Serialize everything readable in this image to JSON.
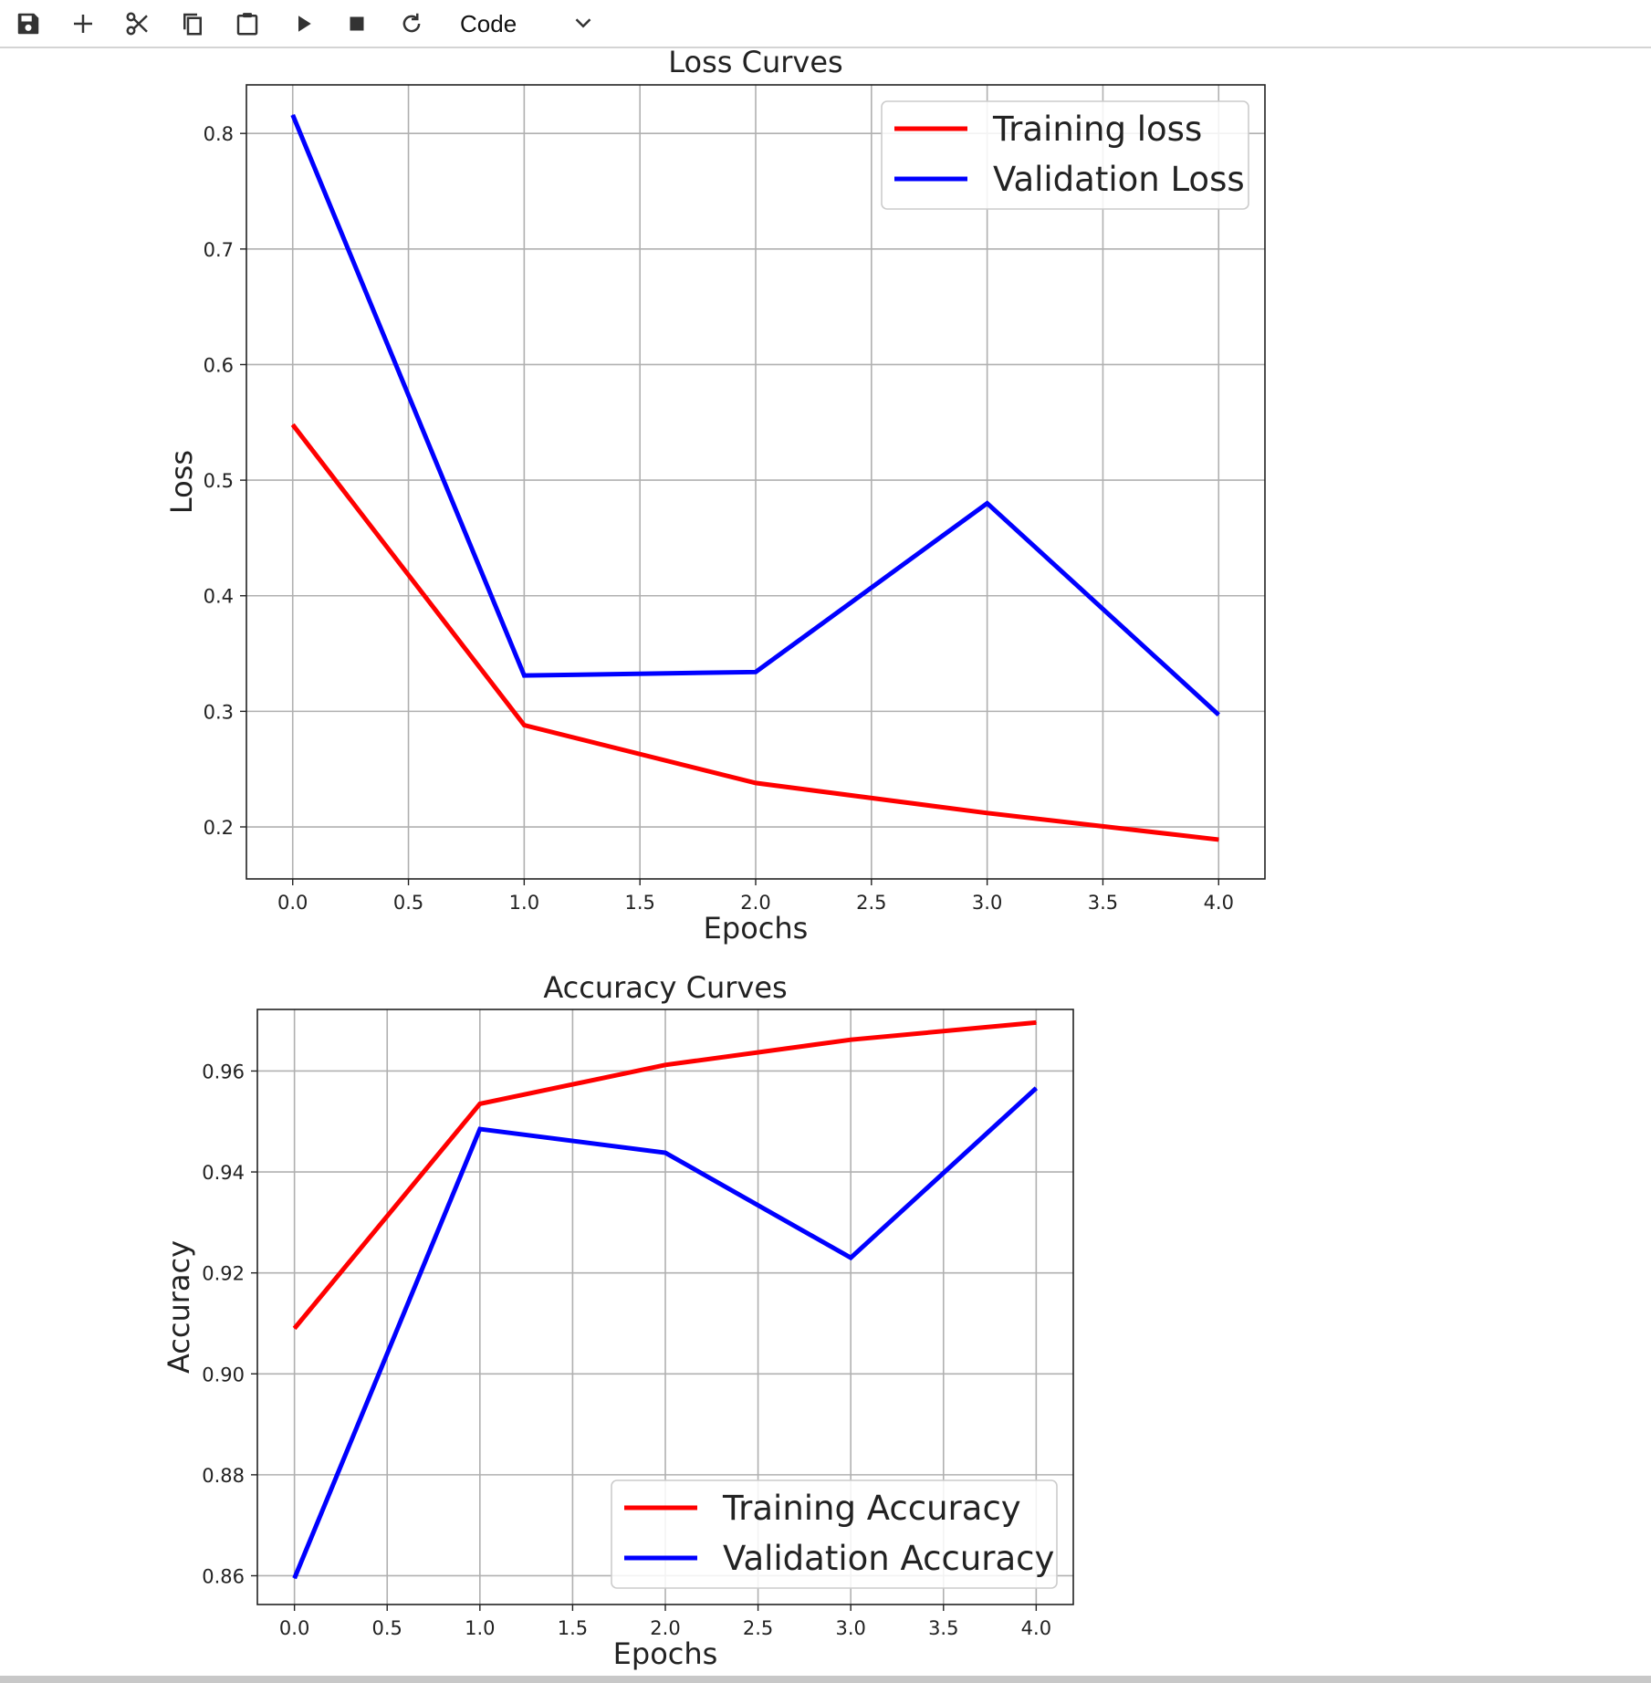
{
  "toolbar": {
    "buttons": [
      {
        "icon": "save-icon"
      },
      {
        "icon": "plus-icon"
      },
      {
        "icon": "cut-icon"
      },
      {
        "icon": "copy-icon"
      },
      {
        "icon": "paste-icon"
      },
      {
        "icon": "run-icon"
      },
      {
        "icon": "stop-icon"
      },
      {
        "icon": "restart-icon"
      }
    ],
    "cell_type": "Code"
  },
  "chart_data": [
    {
      "type": "line",
      "title": "Loss Curves",
      "xlabel": "Epochs",
      "ylabel": "Loss",
      "x": [
        0,
        1,
        2,
        3,
        4
      ],
      "xlim": [
        -0.2,
        4.2
      ],
      "ylim": [
        0.155,
        0.842
      ],
      "xticks": [
        0.0,
        0.5,
        1.0,
        1.5,
        2.0,
        2.5,
        3.0,
        3.5,
        4.0
      ],
      "xtick_labels": [
        "0.0",
        "0.5",
        "1.0",
        "1.5",
        "2.0",
        "2.5",
        "3.0",
        "3.5",
        "4.0"
      ],
      "yticks": [
        0.2,
        0.3,
        0.4,
        0.5,
        0.6,
        0.7,
        0.8
      ],
      "ytick_labels": [
        "0.2",
        "0.3",
        "0.4",
        "0.5",
        "0.6",
        "0.7",
        "0.8"
      ],
      "grid": true,
      "legend_position": "upper right",
      "series": [
        {
          "name": "Training loss",
          "color": "#ff0000",
          "values": [
            0.548,
            0.288,
            0.238,
            0.212,
            0.189
          ]
        },
        {
          "name": "Validation Loss",
          "color": "#0000ff",
          "values": [
            0.816,
            0.331,
            0.334,
            0.48,
            0.297
          ]
        }
      ]
    },
    {
      "type": "line",
      "title": "Accuracy Curves",
      "xlabel": "Epochs",
      "ylabel": "Accuracy",
      "x": [
        0,
        1,
        2,
        3,
        4
      ],
      "xlim": [
        -0.2,
        4.2
      ],
      "ylim": [
        0.8543,
        0.9722
      ],
      "xticks": [
        0.0,
        0.5,
        1.0,
        1.5,
        2.0,
        2.5,
        3.0,
        3.5,
        4.0
      ],
      "xtick_labels": [
        "0.0",
        "0.5",
        "1.0",
        "1.5",
        "2.0",
        "2.5",
        "3.0",
        "3.5",
        "4.0"
      ],
      "yticks": [
        0.86,
        0.88,
        0.9,
        0.92,
        0.94,
        0.96
      ],
      "ytick_labels": [
        "0.86",
        "0.88",
        "0.90",
        "0.92",
        "0.94",
        "0.96"
      ],
      "grid": true,
      "legend_position": "lower right",
      "series": [
        {
          "name": "Training Accuracy",
          "color": "#ff0000",
          "values": [
            0.909,
            0.9535,
            0.9612,
            0.9662,
            0.9696
          ]
        },
        {
          "name": "Validation Accuracy",
          "color": "#0000ff",
          "values": [
            0.8595,
            0.9485,
            0.9438,
            0.923,
            0.9566
          ]
        }
      ]
    }
  ]
}
